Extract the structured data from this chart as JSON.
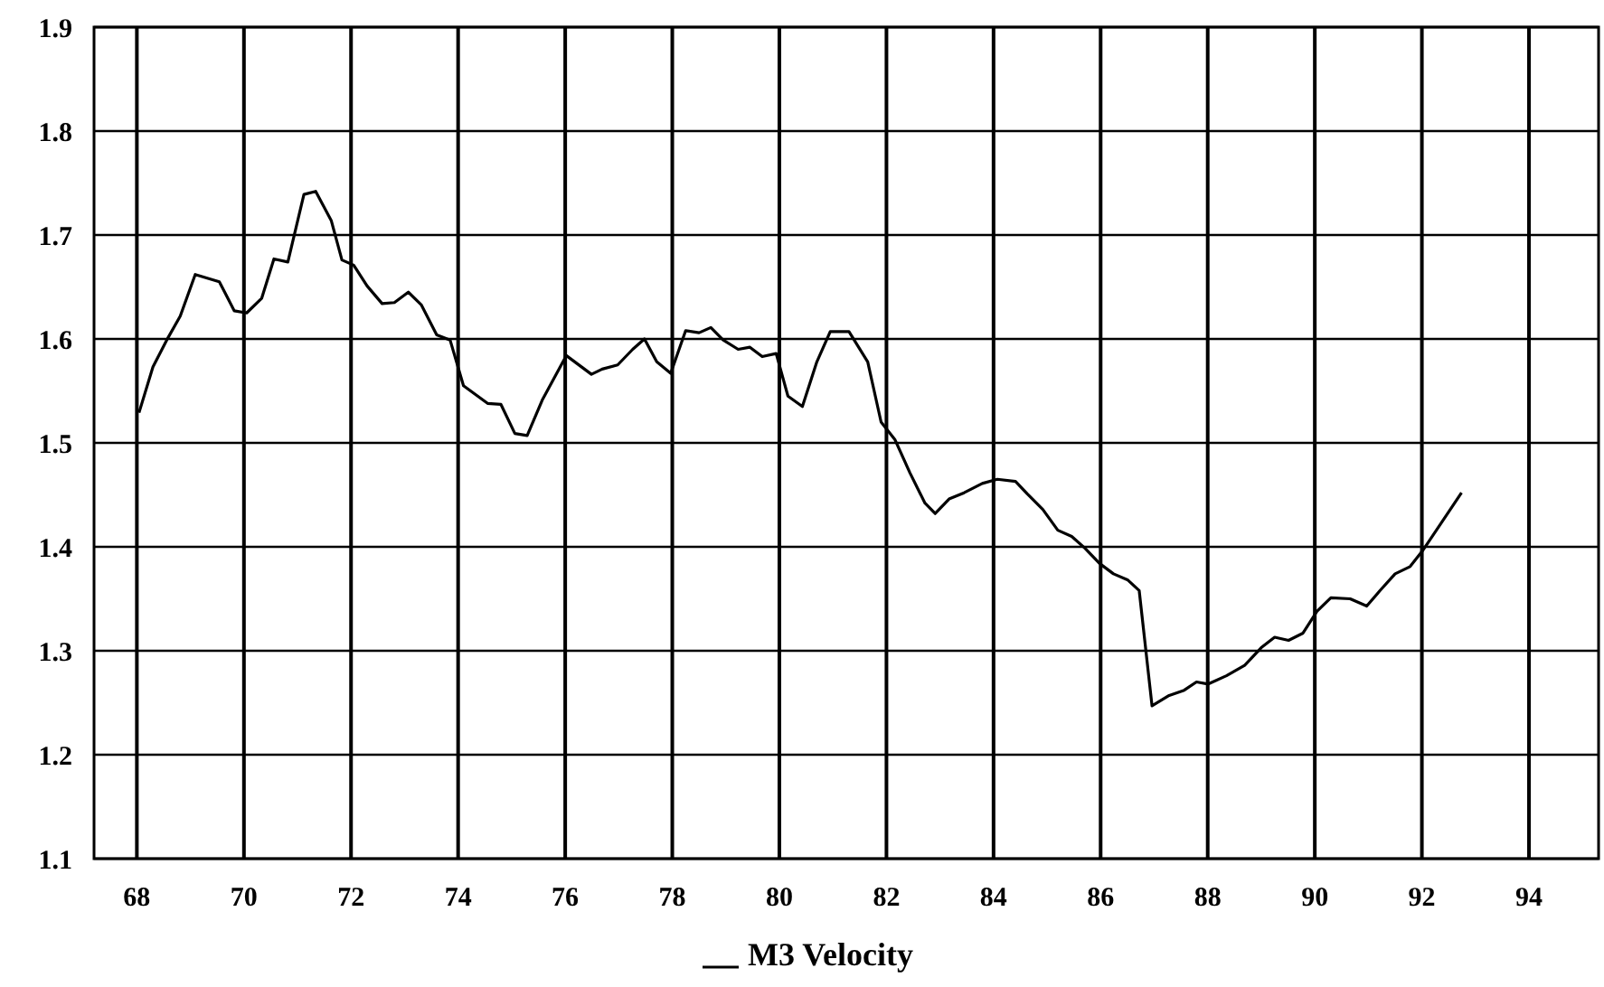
{
  "chart_data": {
    "type": "line",
    "xlim": [
      67.2,
      95.3
    ],
    "ylim": [
      1.1,
      1.9
    ],
    "xticks": [
      68,
      70,
      72,
      74,
      76,
      78,
      80,
      82,
      84,
      86,
      88,
      90,
      92,
      94
    ],
    "yticks": [
      1.1,
      1.2,
      1.3,
      1.4,
      1.5,
      1.6,
      1.7,
      1.8,
      1.9
    ],
    "grid": true,
    "legend": "bottom",
    "marker": "none",
    "line_style": "solid",
    "series": [
      {
        "name": "M3 Velocity",
        "color": "#000000",
        "x": [
          68.04,
          68.3,
          68.58,
          68.81,
          69.09,
          69.54,
          69.82,
          70.05,
          70.33,
          70.56,
          70.82,
          71.12,
          71.34,
          71.63,
          71.83,
          72.05,
          72.3,
          72.58,
          72.81,
          73.07,
          73.31,
          73.6,
          73.85,
          74.1,
          74.55,
          74.8,
          75.06,
          75.29,
          75.57,
          76.02,
          76.49,
          76.69,
          76.98,
          77.26,
          77.48,
          77.71,
          77.97,
          78.25,
          78.5,
          78.72,
          78.95,
          79.23,
          79.45,
          79.68,
          79.94,
          80.16,
          80.43,
          80.7,
          80.95,
          81.3,
          81.65,
          81.9,
          82.16,
          82.44,
          82.72,
          82.91,
          83.17,
          83.45,
          83.79,
          84.07,
          84.41,
          84.63,
          84.92,
          85.2,
          85.46,
          85.7,
          85.98,
          86.24,
          86.51,
          86.72,
          86.96,
          87.28,
          87.56,
          87.79,
          88.01,
          88.35,
          88.69,
          89.0,
          89.25,
          89.51,
          89.78,
          90.04,
          90.3,
          90.66,
          90.97,
          91.22,
          91.5,
          91.78,
          92.01,
          92.35,
          92.74
        ],
        "values": [
          1.529,
          1.573,
          1.601,
          1.622,
          1.662,
          1.655,
          1.627,
          1.625,
          1.639,
          1.677,
          1.674,
          1.739,
          1.742,
          1.714,
          1.676,
          1.671,
          1.651,
          1.634,
          1.635,
          1.645,
          1.633,
          1.604,
          1.599,
          1.555,
          1.538,
          1.537,
          1.509,
          1.507,
          1.541,
          1.584,
          1.566,
          1.571,
          1.575,
          1.59,
          1.6,
          1.578,
          1.567,
          1.608,
          1.606,
          1.611,
          1.599,
          1.59,
          1.592,
          1.583,
          1.586,
          1.545,
          1.535,
          1.578,
          1.607,
          1.607,
          1.578,
          1.52,
          1.503,
          1.471,
          1.442,
          1.432,
          1.446,
          1.452,
          1.461,
          1.465,
          1.463,
          1.451,
          1.436,
          1.416,
          1.41,
          1.399,
          1.384,
          1.374,
          1.368,
          1.358,
          1.247,
          1.257,
          1.262,
          1.27,
          1.268,
          1.276,
          1.286,
          1.303,
          1.313,
          1.31,
          1.317,
          1.338,
          1.351,
          1.35,
          1.343,
          1.358,
          1.374,
          1.381,
          1.396,
          1.422,
          1.452
        ]
      }
    ]
  }
}
